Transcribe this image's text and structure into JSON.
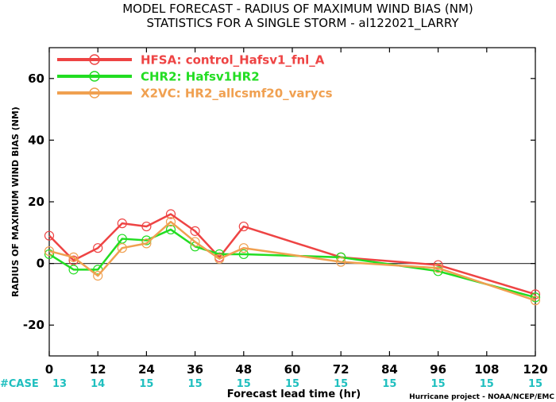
{
  "chart_data": {
    "type": "line",
    "title": "MODEL FORECAST - RADIUS OF MAXIMUM WIND BIAS (NM)",
    "subtitle": "STATISTICS FOR A SINGLE STORM - al122021_LARRY",
    "xlabel": "Forecast lead time (hr)",
    "ylabel": "RADIUS OF MAXIMUM WIND BIAS (NM)",
    "xlim": [
      0,
      120
    ],
    "ylim": [
      -30,
      70
    ],
    "xticks": [
      0,
      12,
      24,
      36,
      48,
      60,
      72,
      84,
      96,
      108,
      120
    ],
    "yticks": [
      -20,
      0,
      20,
      40,
      60
    ],
    "zero_line": true,
    "legend_position": "top-left",
    "case_label": "#CASE",
    "case_color": "#1fbfbf",
    "cases": [
      {
        "x": 0,
        "n": "13"
      },
      {
        "x": 12,
        "n": "14"
      },
      {
        "x": 24,
        "n": "15"
      },
      {
        "x": 36,
        "n": "15"
      },
      {
        "x": 48,
        "n": "15"
      },
      {
        "x": 60,
        "n": "15"
      },
      {
        "x": 72,
        "n": "15"
      },
      {
        "x": 84,
        "n": "15"
      },
      {
        "x": 96,
        "n": "15"
      },
      {
        "x": 108,
        "n": "15"
      },
      {
        "x": 120,
        "n": "15"
      }
    ],
    "series": [
      {
        "name": "HFSA: control_Hafsv1_fnl_A",
        "color": "#ee4444",
        "x": [
          0,
          6,
          12,
          18,
          24,
          30,
          36,
          42,
          48,
          72,
          96,
          120
        ],
        "y": [
          9,
          1,
          5,
          13,
          12,
          16,
          10.5,
          2,
          12,
          2,
          -0.5,
          -10
        ]
      },
      {
        "name": "CHR2: Hafsv1HR2",
        "color": "#22dd22",
        "x": [
          0,
          6,
          12,
          18,
          24,
          30,
          36,
          42,
          48,
          72,
          96,
          120
        ],
        "y": [
          3,
          -2,
          -2,
          8,
          7.5,
          11,
          5.5,
          3,
          3,
          2,
          -2.5,
          -11
        ]
      },
      {
        "name": "X2VC: HR2_allcsmf20_varycs",
        "color": "#f0a050",
        "x": [
          0,
          6,
          12,
          18,
          24,
          30,
          36,
          42,
          48,
          72,
          96,
          120
        ],
        "y": [
          4,
          2,
          -4,
          5,
          6.5,
          13.5,
          7,
          1.5,
          5,
          0.5,
          -1.5,
          -12
        ]
      }
    ]
  },
  "credit": "Hurricane project - NOAA/NCEP/EMC"
}
